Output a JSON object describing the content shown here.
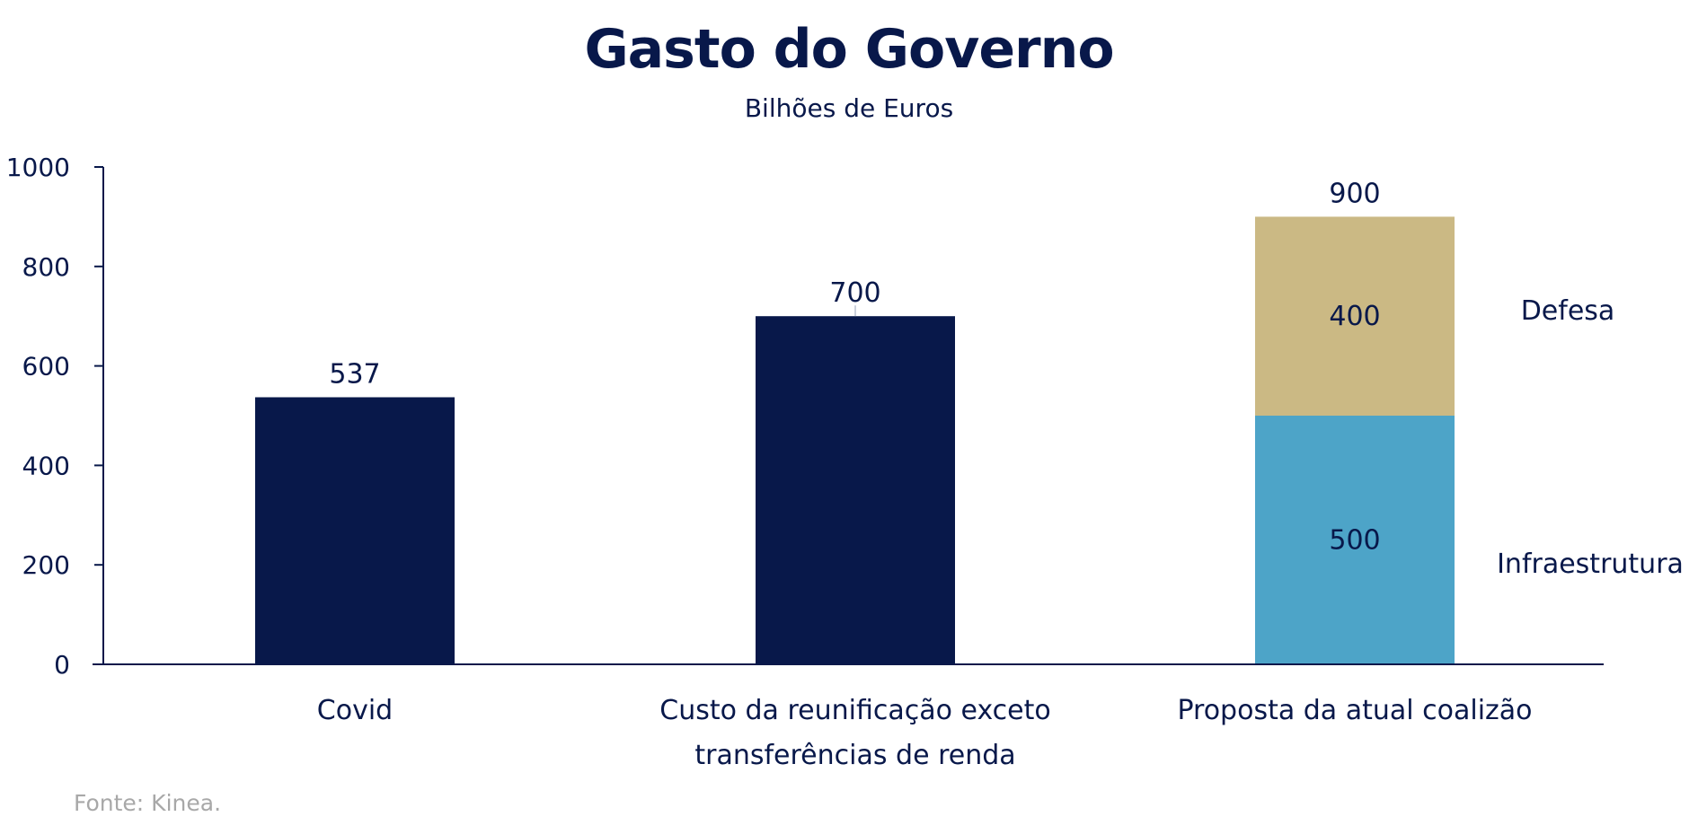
{
  "title": "Gasto do Governo",
  "subtitle": "Bilhões de Euros",
  "source": "Fonte: Kinea.",
  "colors": {
    "main": "#08184a",
    "defesa": "#cbb984",
    "infraestrutura": "#4da4c8"
  },
  "chart_data": {
    "type": "bar",
    "title": "Gasto do Governo",
    "subtitle": "Bilhões de Euros",
    "categories": [
      [
        "Covid"
      ],
      [
        "Custo da reunificação exceto",
        "transferências de renda"
      ],
      [
        "Proposta da atual coalizão"
      ]
    ],
    "ylim": [
      0,
      1000
    ],
    "yticks": [
      0,
      200,
      400,
      600,
      800,
      1000
    ],
    "grid": false,
    "bars": [
      {
        "total": 537,
        "segments": [
          {
            "value": 537,
            "color": "#08184a"
          }
        ]
      },
      {
        "total": 700,
        "segments": [
          {
            "value": 700,
            "color": "#08184a"
          }
        ]
      },
      {
        "total": 900,
        "segments": [
          {
            "name": "Infraestrutura",
            "value": 500,
            "color": "#4da4c8"
          },
          {
            "name": "Defesa",
            "value": 400,
            "color": "#cbb984"
          }
        ]
      }
    ],
    "series_labels": [
      "Infraestrutura",
      "Defesa"
    ]
  }
}
